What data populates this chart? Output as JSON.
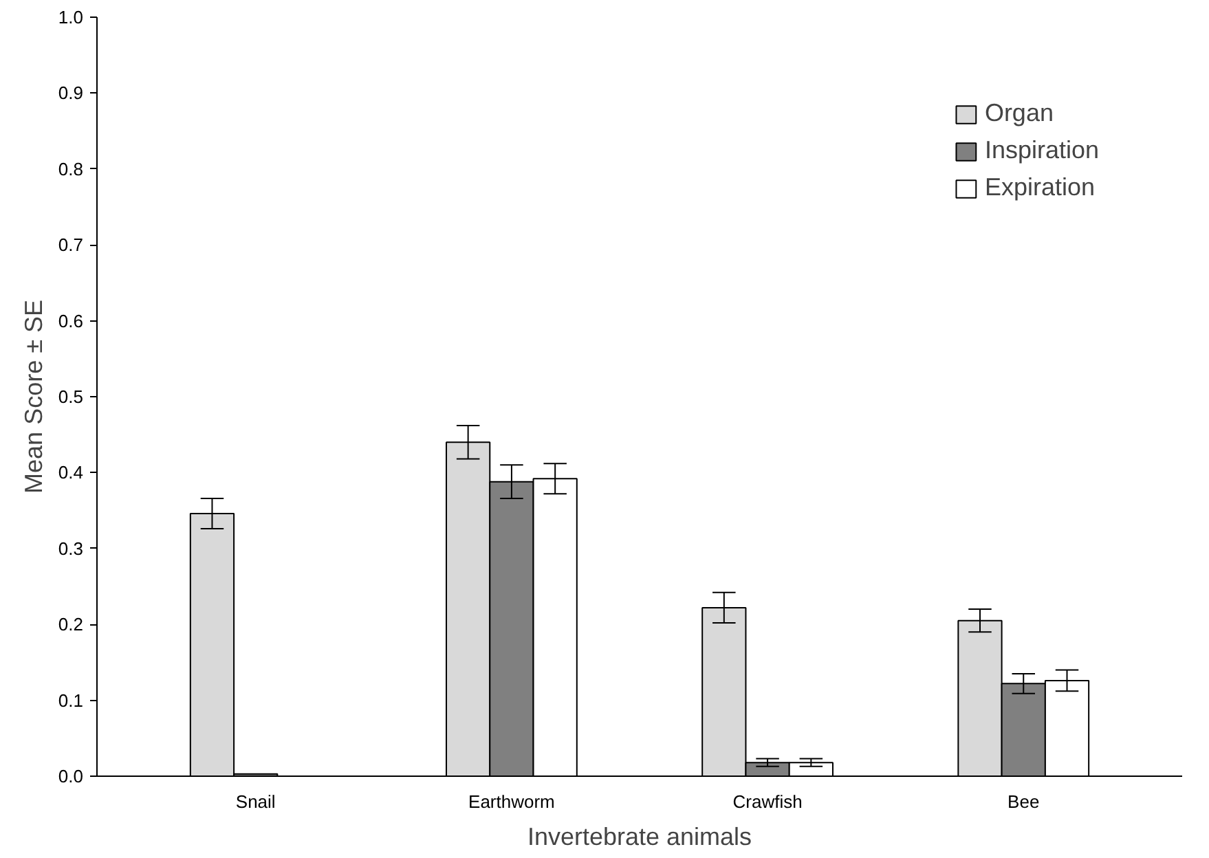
{
  "chart_data": {
    "type": "bar",
    "xlabel": "Invertebrate animals",
    "ylabel": "Mean Score ± SE",
    "categories": [
      "Snail",
      "Earthworm",
      "Crawfish",
      "Bee"
    ],
    "series": [
      {
        "name": "Organ",
        "color": "#d9d9d9",
        "values": [
          0.346,
          0.44,
          0.222,
          0.205
        ],
        "errors": [
          0.02,
          0.022,
          0.02,
          0.015
        ]
      },
      {
        "name": "Inspiration",
        "color": "#808080",
        "values": [
          0.003,
          0.388,
          0.018,
          0.122
        ],
        "errors": [
          null,
          0.022,
          0.005,
          0.013
        ]
      },
      {
        "name": "Expiration",
        "color": "#ffffff",
        "values": [
          null,
          0.392,
          0.018,
          0.126
        ],
        "errors": [
          null,
          0.02,
          0.005,
          0.014
        ]
      }
    ],
    "ylim": [
      0,
      1.0
    ],
    "yticks": [
      {
        "value": 0,
        "label": "0.0"
      },
      {
        "value": 0.1,
        "label": "0.1"
      },
      {
        "value": 0.2,
        "label": "0.2"
      },
      {
        "value": 0.3,
        "label": "0.3"
      },
      {
        "value": 0.4,
        "label": "0.4"
      },
      {
        "value": 0.5,
        "label": "0.5"
      },
      {
        "value": 0.6,
        "label": "0.6"
      },
      {
        "value": 0.7,
        "label": "0.7"
      },
      {
        "value": 0.8,
        "label": "0.8"
      },
      {
        "value": 0.9,
        "label": "0.9"
      },
      {
        "value": 1.0,
        "label": "1.0"
      }
    ],
    "grid": false,
    "legend": "top right"
  }
}
